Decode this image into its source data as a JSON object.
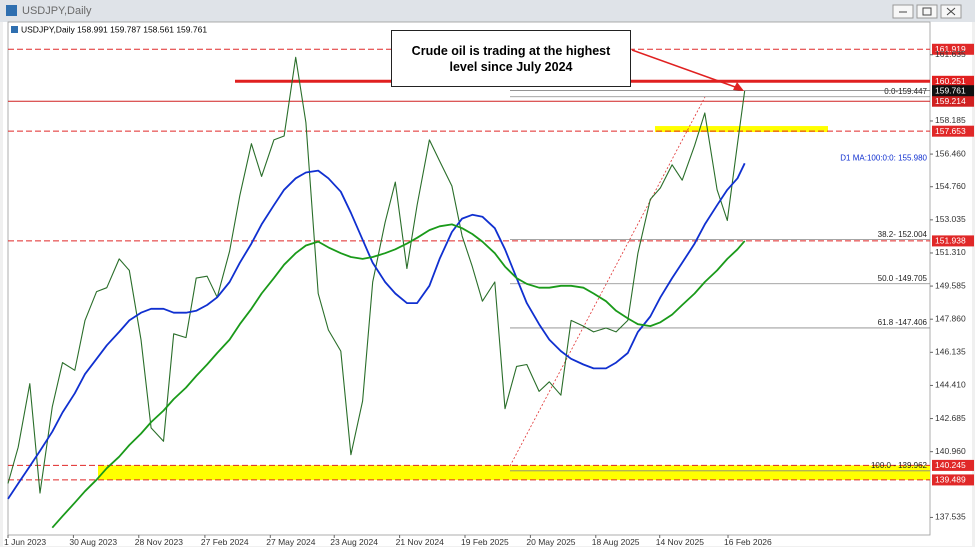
{
  "window": {
    "title": "USDJPY,Daily"
  },
  "chart_data": {
    "type": "line",
    "header": "USDJPY,Daily 158.991 159.787 158.561 159.761",
    "annotation": "Crude oil is trading at the highest level since July 2024",
    "x": [
      "1 Jun 2023",
      "15 Jun 2023",
      "1 Jul 2023",
      "15 Jul 2023",
      "1 Aug 2023",
      "15 Aug 2023",
      "1 Sep 2023",
      "15 Sep 2023",
      "1 Oct 2023",
      "15 Oct 2023",
      "1 Nov 2023",
      "15 Nov 2023",
      "1 Dec 2023",
      "15 Dec 2023",
      "1 Jan 2024",
      "15 Jan 2024",
      "1 Feb 2024",
      "15 Feb 2024",
      "1 Mar 2024",
      "15 Mar 2024",
      "1 Apr 2024",
      "15 Apr 2024",
      "1 May 2024",
      "15 May 2024",
      "1 Jun 2024",
      "15 Jun 2024",
      "1 Jul 2024",
      "15 Jul 2024",
      "1 Aug 2024",
      "15 Aug 2024",
      "1 Sep 2024",
      "15 Sep 2024",
      "1 Oct 2024",
      "15 Oct 2024",
      "1 Nov 2024",
      "15 Nov 2024",
      "1 Dec 2024",
      "15 Dec 2024",
      "1 Jan 2025",
      "15 Jan 2025",
      "1 Feb 2025",
      "15 Feb 2025",
      "1 Mar 2025",
      "15 Mar 2025",
      "1 Apr 2025",
      "15 Apr 2025",
      "1 May 2025",
      "15 May 2025",
      "1 Jun 2025",
      "15 Jun 2025",
      "1 Jul 2025",
      "15 Jul 2025",
      "1 Aug 2025",
      "15 Aug 2025",
      "1 Sep 2025",
      "15 Sep 2025",
      "1 Oct 2025",
      "15 Oct 2025",
      "1 Nov 2025",
      "15 Nov 2025",
      "1 Dec 2025",
      "15 Dec 2025",
      "1 Jan 2026",
      "15 Jan 2026",
      "1 Feb 2026",
      "15 Feb 2026",
      "1 Mar 2026",
      "11 Mar 2026"
    ],
    "xlim": [
      "1 Jun 2023",
      "21 Nov 2026"
    ],
    "xticks": [
      "1 Jun 2023",
      "30 Aug 2023",
      "28 Nov 2023",
      "27 Feb 2024",
      "27 May 2024",
      "23 Aug 2024",
      "21 Nov 2024",
      "19 Feb 2025",
      "20 May 2025",
      "18 Aug 2025",
      "14 Nov 2025",
      "16 Feb 2026"
    ],
    "ylim": [
      136.62,
      163.34
    ],
    "yticks": [
      137.535,
      {
        "value": 140.96,
        "label": "140.960"
      },
      142.685,
      {
        "value": 144.41,
        "label": "144.410"
      },
      146.135,
      {
        "value": 147.86,
        "label": "147.860"
      },
      149.585,
      {
        "value": 151.31,
        "label": "151.310"
      },
      153.035,
      {
        "value": 154.76,
        "label": "154.760"
      },
      {
        "value": 156.46,
        "label": "156.460"
      },
      158.185,
      161.635
    ],
    "series": [
      {
        "color": "#2a6e2a",
        "values": [
          139.3,
          141.2,
          144.5,
          138.8,
          143.3,
          145.6,
          145.2,
          147.8,
          149.3,
          149.5,
          151.0,
          150.4,
          146.8,
          142.2,
          141.5,
          147.1,
          146.9,
          150.0,
          150.1,
          149.0,
          151.4,
          154.3,
          157.0,
          155.3,
          157.2,
          157.4,
          161.5,
          158.1,
          149.2,
          147.3,
          146.2,
          140.8,
          143.6,
          149.8,
          152.9,
          155.0,
          150.5,
          153.8,
          157.2,
          156.1,
          154.8,
          152.2,
          150.6,
          148.8,
          149.8,
          143.2,
          145.4,
          145.5,
          144.1,
          144.6,
          143.9,
          147.8,
          147.5,
          147.2,
          147.4,
          147.2,
          147.8,
          151.3,
          154.1,
          154.7,
          155.9,
          155.1,
          156.9,
          158.6,
          154.6,
          153.0,
          157.0,
          159.761
        ]
      },
      {
        "name": "D1 MA:100:0:0: 155.980",
        "color": "#1030d0",
        "values": [
          138.5,
          139.3,
          140.2,
          141.0,
          142.0,
          143.0,
          144.0,
          145.0,
          145.8,
          146.5,
          147.2,
          147.8,
          148.2,
          148.4,
          148.4,
          148.2,
          148.2,
          148.3,
          148.6,
          149.0,
          149.8,
          150.8,
          151.8,
          152.8,
          153.8,
          154.6,
          155.2,
          155.5,
          155.6,
          155.2,
          154.5,
          153.4,
          152.0,
          150.8,
          149.8,
          149.2,
          148.7,
          148.7,
          149.6,
          151.0,
          152.4,
          153.1,
          153.3,
          153.2,
          152.6,
          151.5,
          150.0,
          148.7,
          147.6,
          146.8,
          146.2,
          145.8,
          145.5,
          145.3,
          145.3,
          145.6,
          146.1,
          147.2,
          148.0,
          149.0,
          150.0,
          150.8,
          151.8,
          152.8,
          153.8,
          154.6,
          155.2,
          155.98
        ]
      },
      {
        "color": "#1a9a1a",
        "values": [
          null,
          null,
          null,
          null,
          137.0,
          137.6,
          138.3,
          138.9,
          139.5,
          140.1,
          140.7,
          141.3,
          141.9,
          142.5,
          143.1,
          143.7,
          144.3,
          144.9,
          145.5,
          146.1,
          146.8,
          147.6,
          148.4,
          149.2,
          150.0,
          150.7,
          151.3,
          151.7,
          151.9,
          151.6,
          151.3,
          151.1,
          151.0,
          151.1,
          151.3,
          151.5,
          151.8,
          152.1,
          152.5,
          152.7,
          152.8,
          152.6,
          152.3,
          151.9,
          151.3,
          150.6,
          150.0,
          149.7,
          149.5,
          149.5,
          149.6,
          149.6,
          149.5,
          149.2,
          148.8,
          148.3,
          147.9,
          147.6,
          147.5,
          147.7,
          148.1,
          148.6,
          149.2,
          149.8,
          150.4,
          151.0,
          151.5,
          151.94
        ]
      }
    ],
    "levels": [
      {
        "value": 161.919,
        "color": "#e02828",
        "style": "dashed"
      },
      {
        "value": 160.251,
        "color": "#e02020",
        "style": "thick"
      },
      {
        "value": 159.214,
        "color": "#d02020",
        "style": "solid"
      },
      {
        "value": 157.653,
        "color": "#e02828",
        "style": "dashed"
      },
      {
        "value": 151.938,
        "color": "#e02828",
        "style": "dashed"
      },
      {
        "value": 140.245,
        "color": "#e02828",
        "style": "dashed"
      },
      {
        "value": 139.489,
        "color": "#e02828",
        "style": "dashed"
      }
    ],
    "bands": [
      {
        "range": [
          139.489,
          140.245
        ],
        "color": "#ffff00"
      },
      {
        "range": [
          157.61,
          157.92
        ],
        "color": "#ffff00"
      }
    ],
    "fib_levels": [
      {
        "value": 159.447,
        "label": "0.0-159.447"
      },
      {
        "value": 152.004,
        "label": "38.2- 152.004"
      },
      {
        "value": 149.705,
        "label": "50.0 -149.705"
      },
      {
        "value": 147.406,
        "label": "61.8 -147.406"
      },
      {
        "value": 139.962,
        "label": "100.0 - 139.962"
      }
    ]
  }
}
